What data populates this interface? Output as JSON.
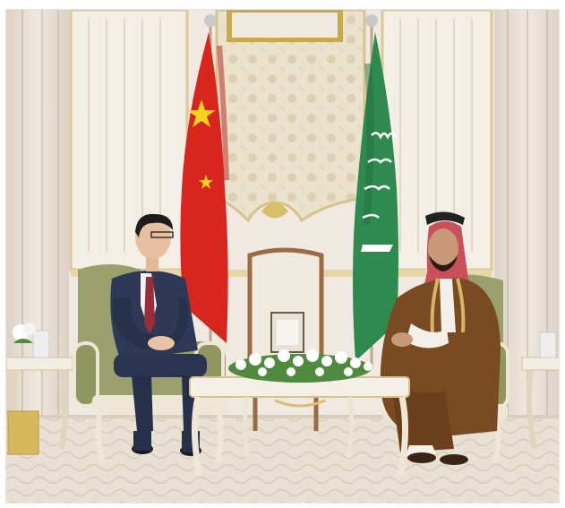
{
  "photo": {
    "alt": "",
    "colors": {
      "wall": "#efe9e2",
      "curtain": "#e6ddd3",
      "panel_gold": "#d8c38c",
      "tapestry": "#e9dfc9",
      "carpet": "#e4ddd0",
      "armchair_green": "#9aa070",
      "armchair_frame": "#efe7d6",
      "chinese_flag_red": "#d8261e",
      "chinese_flag_star": "#f6d31c",
      "saudi_flag_green": "#2e8a4e",
      "suit_navy": "#2d3957",
      "tie_red": "#9a2d3c",
      "bisht_brown": "#7a4a22",
      "headdress_red": "#c9505a",
      "table_white": "#f4f0e8",
      "flowers_green": "#4f8a3e"
    }
  }
}
